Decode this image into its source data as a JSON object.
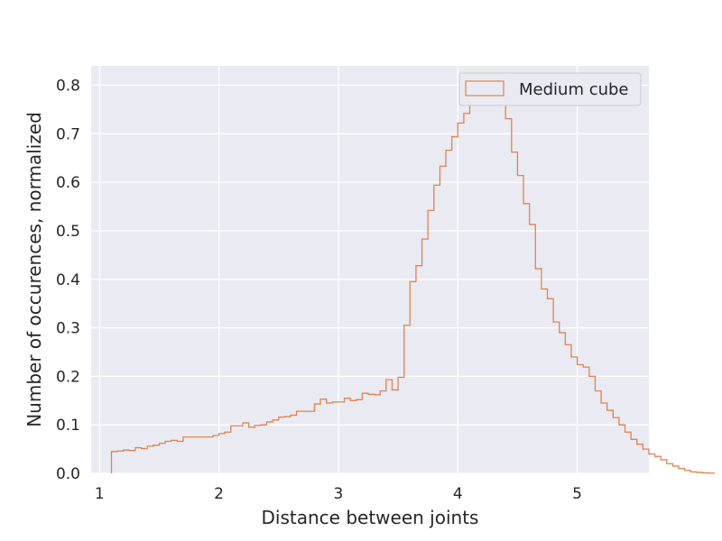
{
  "chart_data": {
    "type": "histogram",
    "style": "step",
    "xlabel": "Distance between joints",
    "ylabel": "Number of occurences, normalized",
    "xlim": [
      0.93,
      5.6
    ],
    "ylim": [
      0.0,
      0.84
    ],
    "xticks": [
      1,
      2,
      3,
      4,
      5
    ],
    "yticks": [
      0.0,
      0.1,
      0.2,
      0.3,
      0.4,
      0.5,
      0.6,
      0.7,
      0.8
    ],
    "grid": true,
    "legend_position": "top-right",
    "series": [
      {
        "name": "Medium cube",
        "color": "#dd8452",
        "bin_width": 0.05,
        "bins_start": 1.1,
        "values": [
          0.045,
          0.046,
          0.048,
          0.047,
          0.053,
          0.051,
          0.056,
          0.058,
          0.062,
          0.066,
          0.068,
          0.066,
          0.075,
          0.075,
          0.075,
          0.075,
          0.075,
          0.078,
          0.082,
          0.085,
          0.098,
          0.098,
          0.104,
          0.095,
          0.099,
          0.1,
          0.106,
          0.11,
          0.116,
          0.117,
          0.12,
          0.128,
          0.128,
          0.128,
          0.143,
          0.153,
          0.145,
          0.147,
          0.147,
          0.155,
          0.15,
          0.152,
          0.165,
          0.163,
          0.162,
          0.17,
          0.193,
          0.172,
          0.198,
          0.305,
          0.395,
          0.428,
          0.483,
          0.542,
          0.594,
          0.633,
          0.666,
          0.694,
          0.722,
          0.742,
          0.763,
          0.777,
          0.787,
          0.795,
          0.792,
          0.782,
          0.731,
          0.662,
          0.614,
          0.556,
          0.513,
          0.422,
          0.38,
          0.36,
          0.312,
          0.29,
          0.265,
          0.24,
          0.224,
          0.219,
          0.2,
          0.17,
          0.145,
          0.13,
          0.115,
          0.1,
          0.085,
          0.07,
          0.06,
          0.05,
          0.04,
          0.035,
          0.028,
          0.02,
          0.015,
          0.01,
          0.006,
          0.003,
          0.002,
          0.001,
          0.0005
        ]
      }
    ]
  }
}
